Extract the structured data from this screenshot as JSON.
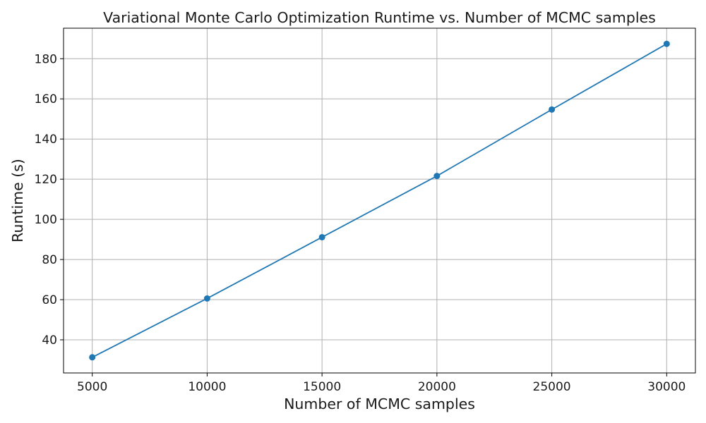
{
  "chart_data": {
    "type": "line",
    "title": "Variational Monte Carlo Optimization Runtime vs. Number of MCMC samples",
    "xlabel": "Number of MCMC samples",
    "ylabel": "Runtime (s)",
    "x": [
      5000,
      10000,
      15000,
      20000,
      25000,
      30000
    ],
    "series": [
      {
        "values": [
          31.3,
          60.6,
          91.1,
          121.6,
          154.7,
          187.4
        ],
        "color": "#1f77b4",
        "marker": "circle"
      }
    ],
    "xlim": [
      3750,
      31250
    ],
    "ylim": [
      23.5,
      195.2
    ],
    "xticks": [
      5000,
      10000,
      15000,
      20000,
      25000,
      30000
    ],
    "yticks": [
      40,
      60,
      80,
      100,
      120,
      140,
      160,
      180
    ],
    "grid": true,
    "legend": "none"
  }
}
